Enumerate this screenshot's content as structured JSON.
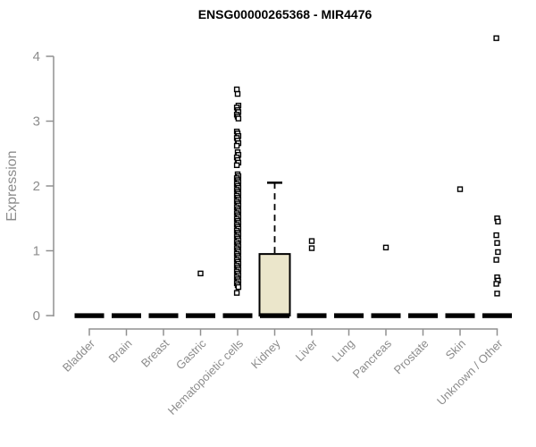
{
  "chart_data": {
    "type": "boxplot",
    "title": "ENSG00000265368 - MIR4476",
    "xlabel": "",
    "ylabel": "Expression",
    "ylim": [
      0,
      4
    ],
    "yticks": [
      0,
      1,
      2,
      3,
      4
    ],
    "grid": false,
    "legend": "none",
    "axis_color": "#909090",
    "tick_label_color": "#8c8c8c",
    "box_fill": "#ebe6cb",
    "box_stroke": "#000000",
    "point_color": "#000000",
    "point_marker": "open-square",
    "categories": [
      "Bladder",
      "Brain",
      "Breast",
      "Gastric",
      "Hematopoietic cells",
      "Kidney",
      "Liver",
      "Lung",
      "Pancreas",
      "Prostate",
      "Skin",
      "Unknown / Other"
    ],
    "boxes": [
      {
        "category": "Bladder",
        "whisker_low": 0,
        "q1": 0,
        "median": 0,
        "q3": 0,
        "whisker_high": 0,
        "outliers": []
      },
      {
        "category": "Brain",
        "whisker_low": 0,
        "q1": 0,
        "median": 0,
        "q3": 0,
        "whisker_high": 0,
        "outliers": []
      },
      {
        "category": "Breast",
        "whisker_low": 0,
        "q1": 0,
        "median": 0,
        "q3": 0,
        "whisker_high": 0,
        "outliers": []
      },
      {
        "category": "Gastric",
        "whisker_low": 0,
        "q1": 0,
        "median": 0,
        "q3": 0,
        "whisker_high": 0,
        "outliers": [
          0.65
        ]
      },
      {
        "category": "Hematopoietic cells",
        "whisker_low": 0,
        "q1": 0,
        "median": 0,
        "q3": 0,
        "whisker_high": 0,
        "outliers": [
          3.49,
          3.42,
          3.24,
          3.21,
          3.17,
          3.14,
          3.1,
          3.07,
          3.04,
          2.84,
          2.81,
          2.77,
          2.74,
          2.7,
          2.66,
          2.62,
          2.52,
          2.48,
          2.44,
          2.4,
          2.36,
          2.32,
          2.18,
          2.15,
          2.12,
          2.09,
          2.06,
          2.03,
          2.0,
          1.97,
          1.94,
          1.91,
          1.88,
          1.85,
          1.82,
          1.79,
          1.76,
          1.73,
          1.7,
          1.67,
          1.64,
          1.61,
          1.58,
          1.55,
          1.52,
          1.49,
          1.46,
          1.43,
          1.4,
          1.37,
          1.34,
          1.31,
          1.28,
          1.25,
          1.22,
          1.19,
          1.16,
          1.13,
          1.1,
          1.07,
          1.04,
          1.01,
          0.98,
          0.95,
          0.92,
          0.89,
          0.86,
          0.83,
          0.8,
          0.77,
          0.74,
          0.71,
          0.68,
          0.65,
          0.62,
          0.59,
          0.56,
          0.53,
          0.5,
          0.47,
          0.44,
          0.35
        ]
      },
      {
        "category": "Kidney",
        "whisker_low": 0,
        "q1": 0,
        "median": 0,
        "q3": 0.95,
        "whisker_high": 2.05,
        "outliers": []
      },
      {
        "category": "Liver",
        "whisker_low": 0,
        "q1": 0,
        "median": 0,
        "q3": 0,
        "whisker_high": 0,
        "outliers": [
          1.15,
          1.04
        ]
      },
      {
        "category": "Lung",
        "whisker_low": 0,
        "q1": 0,
        "median": 0,
        "q3": 0,
        "whisker_high": 0,
        "outliers": []
      },
      {
        "category": "Pancreas",
        "whisker_low": 0,
        "q1": 0,
        "median": 0,
        "q3": 0,
        "whisker_high": 0,
        "outliers": [
          1.05
        ]
      },
      {
        "category": "Prostate",
        "whisker_low": 0,
        "q1": 0,
        "median": 0,
        "q3": 0,
        "whisker_high": 0,
        "outliers": []
      },
      {
        "category": "Skin",
        "whisker_low": 0,
        "q1": 0,
        "median": 0,
        "q3": 0,
        "whisker_high": 0,
        "outliers": [
          1.95
        ]
      },
      {
        "category": "Unknown / Other",
        "whisker_low": 0,
        "q1": 0,
        "median": 0,
        "q3": 0,
        "whisker_high": 0,
        "outliers": [
          4.28,
          1.5,
          1.45,
          1.24,
          1.12,
          0.98,
          0.86,
          0.59,
          0.54,
          0.49,
          0.34
        ]
      }
    ]
  }
}
